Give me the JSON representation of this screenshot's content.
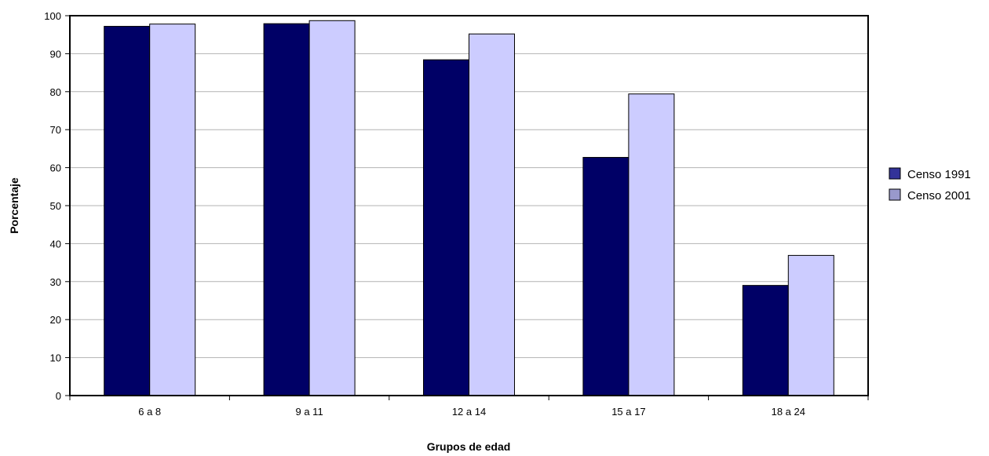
{
  "chart_data": {
    "type": "bar",
    "title": "",
    "xlabel": "Grupos de edad",
    "ylabel": "Porcentaje",
    "categories": [
      "6 a 8",
      "9 a 11",
      "12 a 14",
      "15 a 17",
      "18 a 24"
    ],
    "series": [
      {
        "name": "Censo 1991",
        "values": [
          97.2,
          97.9,
          88.4,
          62.7,
          29.0
        ],
        "color": "#000066",
        "legend_color": "#333399"
      },
      {
        "name": "Censo 2001",
        "values": [
          97.8,
          98.7,
          95.2,
          79.4,
          36.9
        ],
        "color": "#ccccff",
        "legend_color": "#9999cc"
      }
    ],
    "ylim": [
      0,
      100
    ],
    "yticks": [
      0,
      10,
      20,
      30,
      40,
      50,
      60,
      70,
      80,
      90,
      100
    ],
    "grid": true,
    "legend_position": "right"
  }
}
